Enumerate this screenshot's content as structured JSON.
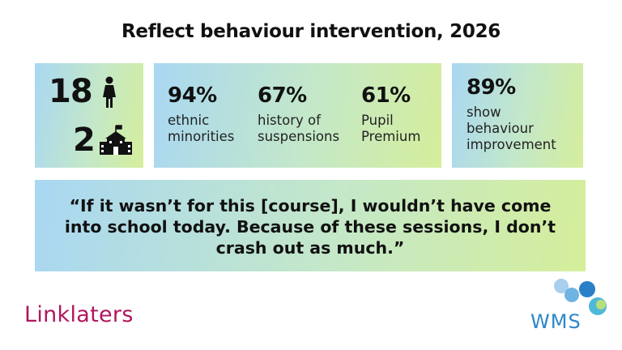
{
  "title": "Reflect behaviour intervention, 2026",
  "participants": {
    "students": "18",
    "schools": "2"
  },
  "stats": [
    {
      "value": "94%",
      "label": "ethnic minorities"
    },
    {
      "value": "67%",
      "label": "history of suspensions"
    },
    {
      "value": "61%",
      "label": "Pupil Premium"
    }
  ],
  "highlight": {
    "value": "89%",
    "label": "show behaviour improvement"
  },
  "quote": "“If it wasn’t for this [course], I wouldn’t have come into school today. Because of these sessions, I don’t crash out as much.”",
  "logos": {
    "left": "Linklaters",
    "right": "WMS"
  }
}
